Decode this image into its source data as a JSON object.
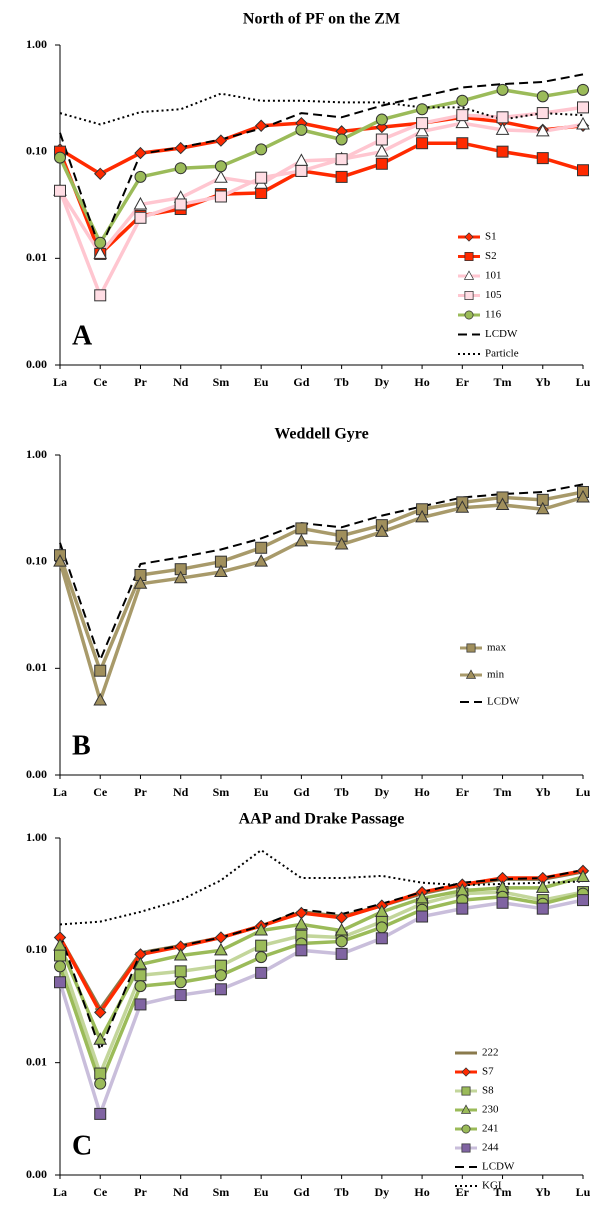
{
  "chart_data": [
    {
      "type": "line",
      "title": "North of PF on the ZM",
      "annotation": "A",
      "log_scale": true,
      "grid": false,
      "legend": "lower right",
      "categories": [
        "La",
        "Ce",
        "Pr",
        "Nd",
        "Sm",
        "Eu",
        "Gd",
        "Tb",
        "Dy",
        "Ho",
        "Er",
        "Tm",
        "Yb",
        "Lu"
      ],
      "ylim": [
        0.001,
        1
      ],
      "yticks": [
        {
          "value": 0.001,
          "label": "0.00"
        },
        {
          "value": 0.01,
          "label": "0.01"
        },
        {
          "value": 0.1,
          "label": "0.10"
        },
        {
          "value": 1,
          "label": "1.00"
        }
      ],
      "series": [
        {
          "name": "S1",
          "color": "#ff2a00",
          "marker": "diamond",
          "marker_fill": "#ff2a00",
          "line_style": "solid",
          "values": [
            0.105,
            0.062,
            0.097,
            0.108,
            0.127,
            0.175,
            0.185,
            0.155,
            0.17,
            0.185,
            0.21,
            0.19,
            0.16,
            0.175
          ]
        },
        {
          "name": "S2",
          "color": "#ff2a00",
          "marker": "square",
          "marker_fill": "#ff2a00",
          "line_style": "solid",
          "values": [
            0.1,
            0.011,
            0.025,
            0.029,
            0.04,
            0.041,
            0.066,
            0.058,
            0.077,
            0.12,
            0.12,
            0.1,
            0.087,
            0.067
          ]
        },
        {
          "name": "101",
          "color": "#ffc6d0",
          "marker": "triangle",
          "marker_fill": "#ffffff",
          "line_style": "solid",
          "values": [
            0.043,
            0.011,
            0.032,
            0.037,
            0.057,
            0.05,
            0.082,
            0.085,
            0.1,
            0.155,
            0.185,
            0.16,
            0.155,
            0.18
          ]
        },
        {
          "name": "105",
          "color": "#ffc6d0",
          "marker": "square",
          "marker_fill": "#ffdde4",
          "line_style": "solid",
          "values": [
            0.043,
            0.0045,
            0.024,
            0.032,
            0.038,
            0.057,
            0.066,
            0.085,
            0.13,
            0.185,
            0.22,
            0.21,
            0.23,
            0.26
          ]
        },
        {
          "name": "116",
          "color": "#9bbb59",
          "marker": "circle",
          "marker_fill": "#9bbb59",
          "line_style": "solid",
          "values": [
            0.088,
            0.014,
            0.058,
            0.07,
            0.073,
            0.105,
            0.16,
            0.13,
            0.2,
            0.25,
            0.3,
            0.38,
            0.33,
            0.38
          ]
        },
        {
          "name": "LCDW",
          "color": "#000000",
          "marker": "none",
          "line_style": "dashed",
          "values": [
            0.15,
            0.012,
            0.095,
            0.11,
            0.13,
            0.165,
            0.23,
            0.21,
            0.27,
            0.33,
            0.4,
            0.43,
            0.45,
            0.53
          ]
        },
        {
          "name": "Particle",
          "color": "#000000",
          "marker": "none",
          "line_style": "dotted",
          "values": [
            0.23,
            0.18,
            0.235,
            0.25,
            0.35,
            0.3,
            0.3,
            0.29,
            0.29,
            0.26,
            0.26,
            0.2,
            0.23,
            0.22
          ]
        }
      ]
    },
    {
      "type": "line",
      "title": "Weddell Gyre",
      "annotation": "B",
      "log_scale": true,
      "grid": false,
      "legend": "lower right",
      "categories": [
        "La",
        "Ce",
        "Pr",
        "Nd",
        "Sm",
        "Eu",
        "Gd",
        "Tb",
        "Dy",
        "Ho",
        "Er",
        "Tm",
        "Yb",
        "Lu"
      ],
      "ylim": [
        0.001,
        1
      ],
      "yticks": [
        {
          "value": 0.001,
          "label": "0.00"
        },
        {
          "value": 0.01,
          "label": "0.01"
        },
        {
          "value": 0.1,
          "label": "0.10"
        },
        {
          "value": 1,
          "label": "1.00"
        }
      ],
      "series": [
        {
          "name": "max",
          "color": "#a89a6a",
          "marker": "square",
          "marker_fill": "#a08f5c",
          "line_style": "solid",
          "values": [
            0.115,
            0.0095,
            0.075,
            0.085,
            0.1,
            0.135,
            0.205,
            0.175,
            0.22,
            0.31,
            0.36,
            0.4,
            0.38,
            0.45
          ]
        },
        {
          "name": "min",
          "color": "#a89a6a",
          "marker": "triangle",
          "marker_fill": "#a08f5c",
          "line_style": "solid",
          "values": [
            0.1,
            0.005,
            0.062,
            0.07,
            0.08,
            0.1,
            0.155,
            0.145,
            0.19,
            0.26,
            0.32,
            0.34,
            0.31,
            0.4
          ]
        },
        {
          "name": "LCDW",
          "color": "#000000",
          "marker": "none",
          "line_style": "dashed",
          "values": [
            0.15,
            0.012,
            0.095,
            0.11,
            0.13,
            0.165,
            0.23,
            0.21,
            0.27,
            0.33,
            0.4,
            0.43,
            0.45,
            0.53
          ]
        }
      ]
    },
    {
      "type": "line",
      "title": "AAP and Drake Passage",
      "annotation": "C",
      "log_scale": true,
      "grid": false,
      "legend": "lower right",
      "categories": [
        "La",
        "Ce",
        "Pr",
        "Nd",
        "Sm",
        "Eu",
        "Gd",
        "Tb",
        "Dy",
        "Ho",
        "Er",
        "Tm",
        "Yb",
        "Lu"
      ],
      "ylim": [
        0.001,
        1
      ],
      "yticks": [
        {
          "value": 0.001,
          "label": "0.00"
        },
        {
          "value": 0.01,
          "label": "0.01"
        },
        {
          "value": 0.1,
          "label": "0.10"
        },
        {
          "value": 1,
          "label": "1.00"
        }
      ],
      "series": [
        {
          "name": "222",
          "color": "#8a7a4c",
          "marker": "dash",
          "marker_fill": "#8a7a4c",
          "line_style": "solid",
          "values": [
            0.13,
            0.03,
            0.095,
            0.11,
            0.13,
            0.165,
            0.22,
            0.2,
            0.25,
            0.32,
            0.38,
            0.43,
            0.43,
            0.5
          ]
        },
        {
          "name": "S7",
          "color": "#ff2a00",
          "marker": "diamond",
          "marker_fill": "#ff2a00",
          "line_style": "solid",
          "values": [
            0.13,
            0.028,
            0.092,
            0.108,
            0.13,
            0.165,
            0.215,
            0.195,
            0.25,
            0.33,
            0.385,
            0.44,
            0.44,
            0.51
          ]
        },
        {
          "name": "S8",
          "color": "#c3d69b",
          "marker": "square",
          "marker_fill": "#9bbb59",
          "line_style": "solid",
          "values": [
            0.09,
            0.008,
            0.06,
            0.065,
            0.073,
            0.11,
            0.135,
            0.13,
            0.18,
            0.26,
            0.32,
            0.33,
            0.28,
            0.33
          ]
        },
        {
          "name": "230",
          "color": "#9bbb59",
          "marker": "triangle",
          "marker_fill": "#9bbb59",
          "line_style": "solid",
          "values": [
            0.11,
            0.016,
            0.075,
            0.09,
            0.1,
            0.15,
            0.17,
            0.15,
            0.22,
            0.29,
            0.34,
            0.36,
            0.36,
            0.45
          ]
        },
        {
          "name": "241",
          "color": "#9bbb59",
          "marker": "circle",
          "marker_fill": "#9bbb59",
          "line_style": "solid",
          "values": [
            0.072,
            0.0065,
            0.048,
            0.052,
            0.06,
            0.087,
            0.115,
            0.12,
            0.16,
            0.23,
            0.28,
            0.3,
            0.26,
            0.32
          ]
        },
        {
          "name": "244",
          "color": "#c9bedb",
          "marker": "square",
          "marker_fill": "#8064a2",
          "line_style": "solid",
          "values": [
            0.052,
            0.0035,
            0.033,
            0.04,
            0.045,
            0.063,
            0.1,
            0.093,
            0.128,
            0.2,
            0.235,
            0.265,
            0.235,
            0.28
          ]
        },
        {
          "name": "LCDW",
          "color": "#000000",
          "marker": "none",
          "line_style": "dashed",
          "values": [
            0.14,
            0.013,
            0.095,
            0.11,
            0.13,
            0.165,
            0.23,
            0.21,
            0.26,
            0.33,
            0.4,
            0.43,
            0.44,
            0.52
          ]
        },
        {
          "name": "KGI",
          "color": "#000000",
          "marker": "none",
          "line_style": "dotted",
          "values": [
            0.17,
            0.18,
            0.22,
            0.28,
            0.42,
            0.78,
            0.44,
            0.44,
            0.46,
            0.4,
            0.38,
            0.39,
            0.4,
            0.41
          ]
        }
      ]
    }
  ]
}
